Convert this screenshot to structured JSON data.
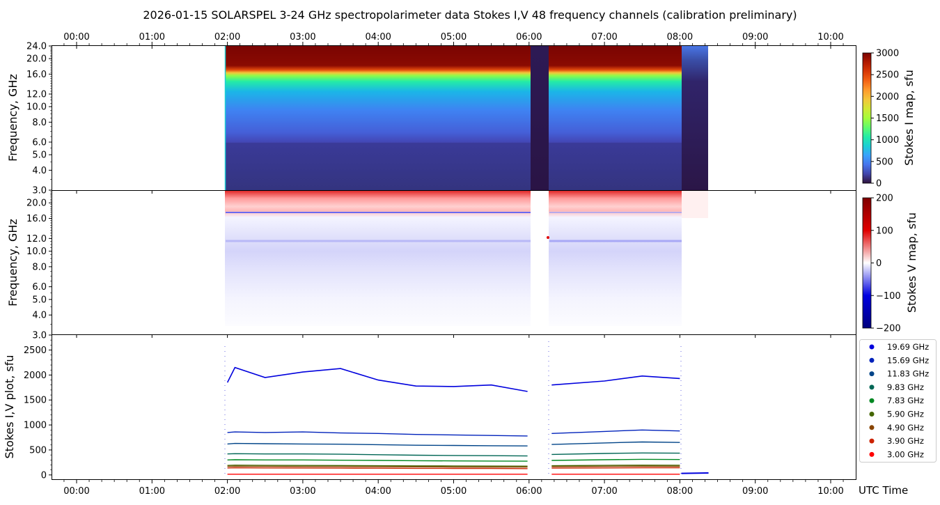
{
  "title": "2026-01-15  SOLARSPEL  3-24 GHz spectropolarimeter data   Stokes I,V   48 frequency channels   (calibration preliminary)",
  "x_axis": {
    "ticks": [
      "00:00",
      "01:00",
      "02:00",
      "03:00",
      "04:00",
      "05:00",
      "06:00",
      "07:00",
      "08:00",
      "09:00",
      "10:00"
    ],
    "label": "UTC Time",
    "range_hours": [
      -0.33,
      10.33
    ]
  },
  "panels": {
    "stokes_i": {
      "ylabel": "Frequency, GHz",
      "yticks": [
        "3.0",
        "4.0",
        "5.0",
        "6.0",
        "8.0",
        "10.0",
        "12.0",
        "16.0",
        "20.0",
        "24.0"
      ],
      "colorbar_label": "Stokes I map, sfu",
      "colorbar_ticks": [
        "0",
        "500",
        "1000",
        "1500",
        "2000",
        "2500",
        "3000"
      ],
      "colors": [
        "#30123b",
        "#4145ab",
        "#4675ed",
        "#39a2fc",
        "#1bcfd4",
        "#24eca6",
        "#61fc6c",
        "#a4fc3b",
        "#d1e834",
        "#f3c63a",
        "#fe9b2d",
        "#f36315",
        "#d93806",
        "#b11901",
        "#7a0402"
      ]
    },
    "stokes_v": {
      "ylabel": "Frequency, GHz",
      "yticks": [
        "3.0",
        "4.0",
        "5.0",
        "6.0",
        "8.0",
        "10.0",
        "12.0",
        "16.0",
        "20.0"
      ],
      "colorbar_label": "Stokes V map, sfu",
      "colorbar_ticks": [
        "200",
        "100",
        "0",
        "−100",
        "−200"
      ],
      "colors": [
        "#7f0000",
        "#e00000",
        "#ffffff",
        "#0000e0",
        "#00007f"
      ]
    },
    "stokes_plot": {
      "ylabel": "Stokes I,V plot, sfu",
      "yticks": [
        "0",
        "500",
        "1000",
        "1500",
        "2000",
        "2500"
      ],
      "ylim": [
        -100,
        2800
      ]
    }
  },
  "chart_data": {
    "type": "line",
    "title": "2026-01-15  SOLARSPEL  3-24 GHz spectropolarimeter data   Stokes I,V   48 frequency channels   (calibration preliminary)",
    "xlabel": "UTC Time",
    "ylabel": "Stokes I,V plot, sfu",
    "ylim": [
      -100,
      2800
    ],
    "observation_segments_hours": [
      [
        1.97,
        6.0
      ],
      [
        6.25,
        8.02
      ]
    ],
    "x_hours": [
      2.0,
      2.1,
      2.5,
      3.0,
      3.5,
      4.0,
      4.5,
      5.0,
      5.5,
      5.98,
      6.3,
      7.0,
      7.5,
      8.0
    ],
    "series": [
      {
        "name": "19.69 GHz",
        "color": "#0000dd",
        "values": [
          1850,
          2150,
          1950,
          2060,
          2130,
          1900,
          1780,
          1770,
          1800,
          1670,
          1800,
          1880,
          1980,
          1930
        ]
      },
      {
        "name": "15.69 GHz",
        "color": "#0022bb",
        "values": [
          850,
          860,
          850,
          860,
          840,
          830,
          810,
          800,
          790,
          780,
          830,
          870,
          900,
          880
        ]
      },
      {
        "name": "11.83 GHz",
        "color": "#004488",
        "values": [
          620,
          630,
          625,
          620,
          615,
          605,
          595,
          590,
          585,
          580,
          610,
          640,
          660,
          650
        ]
      },
      {
        "name": "9.83 GHz",
        "color": "#006655",
        "values": [
          420,
          425,
          420,
          420,
          415,
          405,
          395,
          390,
          385,
          380,
          410,
          430,
          440,
          435
        ]
      },
      {
        "name": "7.83 GHz",
        "color": "#008822",
        "values": [
          300,
          305,
          300,
          300,
          295,
          290,
          285,
          280,
          278,
          275,
          290,
          305,
          312,
          308
        ]
      },
      {
        "name": "5.90 GHz",
        "color": "#446600",
        "values": [
          190,
          195,
          192,
          190,
          188,
          185,
          182,
          180,
          178,
          176,
          185,
          192,
          196,
          194
        ]
      },
      {
        "name": "4.90 GHz",
        "color": "#884400",
        "values": [
          170,
          172,
          170,
          168,
          166,
          164,
          162,
          160,
          158,
          156,
          165,
          170,
          174,
          172
        ]
      },
      {
        "name": "3.90 GHz",
        "color": "#cc2200",
        "values": [
          140,
          142,
          140,
          138,
          136,
          134,
          132,
          130,
          128,
          126,
          135,
          140,
          144,
          142
        ]
      },
      {
        "name": "3.00 GHz",
        "color": "#ff0000",
        "values": [
          15,
          15,
          15,
          15,
          15,
          15,
          15,
          15,
          15,
          15,
          15,
          15,
          15,
          15
        ]
      }
    ]
  }
}
